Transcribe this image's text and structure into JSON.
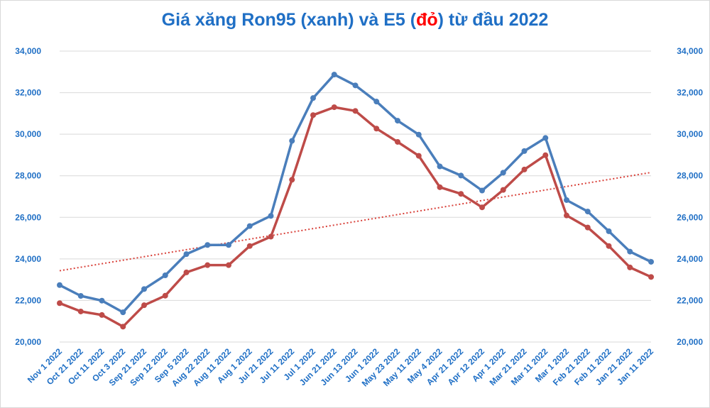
{
  "title": {
    "part1": "Giá xăng Ron95 (xanh) và E5 (",
    "part_red": "đỏ",
    "part2": ") từ đầu 2022"
  },
  "colors": {
    "ron95": "#4a7ebb",
    "e5": "#be4b48",
    "trendline": "#d9423b",
    "axis_text": "#1f6fc5",
    "gridline": "#d9d9d9"
  },
  "chart_data": {
    "type": "line",
    "title": "Giá xăng Ron95 (xanh) và E5 (đỏ) từ đầu 2022",
    "categories": [
      "Nov 1 2022",
      "Oct 21 2022",
      "Oct 11 2022",
      "Oct 3 2022",
      "Sep 21 2022",
      "Sep 12 2022",
      "Sep 5 2022",
      "Aug 22 2022",
      "Aug 11 2022",
      "Aug 1 2022",
      "Jul 21 2022",
      "Jul 11 2022",
      "Jul 1 2022",
      "Jun 21 2022",
      "Jun 13 2022",
      "Jun 1 2022",
      "May 23 2022",
      "May 11 2022",
      "May 4 2022",
      "Apr 21 2022",
      "Apr 12 2022",
      "Apr 1 2022",
      "Mar 21 2022",
      "Mar 11 2022",
      "Mar 1 2022",
      "Feb 21 2022",
      "Feb 11 2022",
      "Jan 21 2022",
      "Jan 11 2022"
    ],
    "series": [
      {
        "values": [
          22740,
          22220,
          21990,
          21430,
          22550,
          23210,
          24230,
          24670,
          24670,
          25580,
          26070,
          29680,
          31740,
          32870,
          32350,
          31570,
          30650,
          29980,
          28450,
          28010,
          27290,
          28150,
          29190,
          29820,
          26830,
          26280,
          25330,
          24350,
          23860
        ]
      },
      {
        "values": [
          21870,
          21470,
          21300,
          20740,
          21770,
          22230,
          23350,
          23700,
          23700,
          24620,
          25070,
          27810,
          30920,
          31300,
          31120,
          30270,
          29630,
          28960,
          27450,
          27130,
          26480,
          27320,
          28300,
          28990,
          26090,
          25510,
          24620,
          23590,
          23130
        ]
      }
    ],
    "trendline": {
      "style": "dotted",
      "series_index": 1,
      "start": 23430,
      "end": 28160
    },
    "ylim": [
      20000,
      34000
    ],
    "yticks": [
      "20,000",
      "22,000",
      "24,000",
      "26,000",
      "28,000",
      "30,000",
      "32,000",
      "34,000"
    ],
    "grid": true,
    "secondary_y_axis": true
  }
}
